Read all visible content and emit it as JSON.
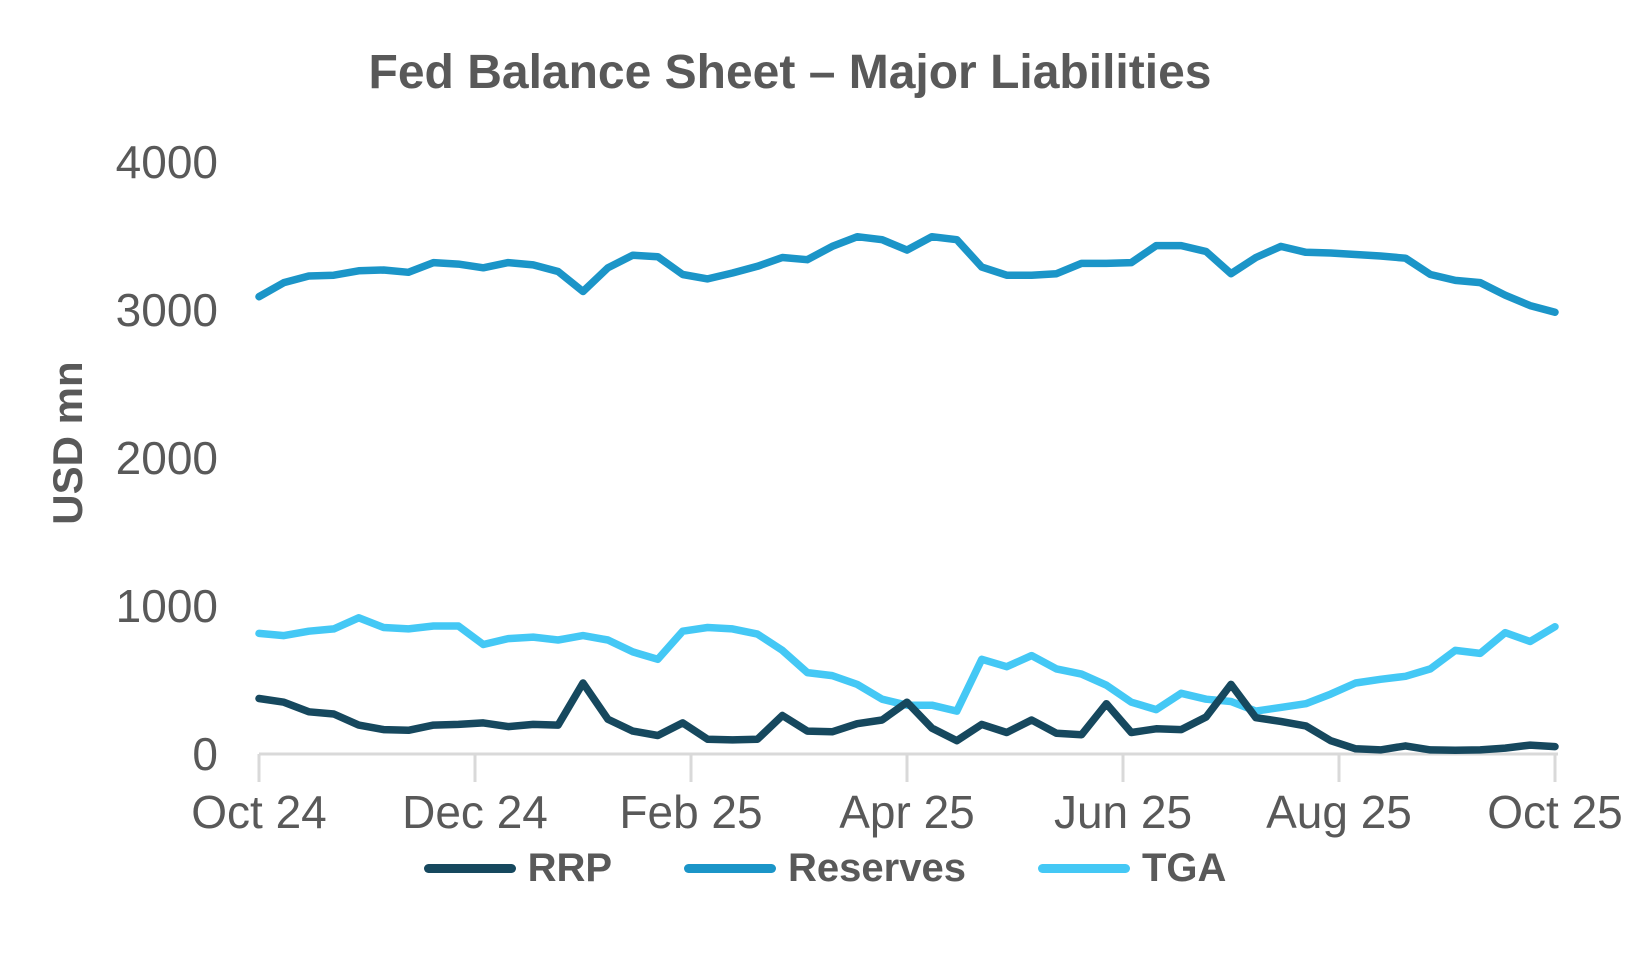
{
  "chart_data": {
    "type": "line",
    "title": "Fed Balance Sheet – Major Liabilities",
    "ylabel": "USD mn",
    "ylim": [
      0,
      4000
    ],
    "yticks": [
      0,
      1000,
      2000,
      3000,
      4000
    ],
    "xticklabels": [
      "Oct 24",
      "Dec 24",
      "Feb 25",
      "Apr 25",
      "Jun 25",
      "Aug 25",
      "Oct 25"
    ],
    "grid": false,
    "legend_position": "bottom",
    "series": [
      {
        "name": "RRP",
        "color": "#16485e",
        "values": [
          375,
          350,
          285,
          270,
          195,
          165,
          160,
          195,
          200,
          210,
          185,
          200,
          195,
          480,
          235,
          155,
          125,
          210,
          100,
          95,
          100,
          260,
          155,
          150,
          205,
          230,
          350,
          175,
          90,
          200,
          145,
          230,
          140,
          130,
          340,
          145,
          170,
          165,
          250,
          470,
          245,
          220,
          190,
          90,
          35,
          28,
          55,
          28,
          25,
          28,
          40,
          60,
          50
        ]
      },
      {
        "name": "Reserves",
        "color": "#1b95c8",
        "values": [
          3090,
          3185,
          3230,
          3235,
          3265,
          3270,
          3255,
          3320,
          3310,
          3285,
          3320,
          3305,
          3260,
          3125,
          3285,
          3370,
          3360,
          3240,
          3210,
          3250,
          3295,
          3355,
          3340,
          3430,
          3495,
          3475,
          3405,
          3495,
          3475,
          3290,
          3235,
          3235,
          3245,
          3315,
          3315,
          3320,
          3435,
          3435,
          3395,
          3245,
          3355,
          3430,
          3390,
          3385,
          3375,
          3365,
          3350,
          3240,
          3200,
          3185,
          3100,
          3030,
          2985
        ]
      },
      {
        "name": "TGA",
        "color": "#44c8f5",
        "values": [
          815,
          800,
          830,
          845,
          920,
          855,
          845,
          865,
          865,
          740,
          780,
          790,
          770,
          800,
          770,
          690,
          640,
          830,
          855,
          845,
          810,
          700,
          550,
          530,
          470,
          370,
          330,
          330,
          290,
          640,
          590,
          665,
          575,
          540,
          465,
          350,
          300,
          410,
          370,
          355,
          290,
          315,
          340,
          405,
          480,
          505,
          525,
          575,
          700,
          680,
          820,
          760,
          860
        ]
      }
    ]
  },
  "colors": {
    "text": "#595959",
    "axis": "#d9d9d9",
    "background": "#ffffff"
  }
}
